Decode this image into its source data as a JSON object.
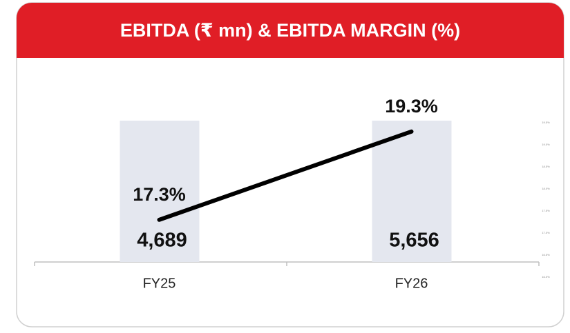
{
  "chart_data": {
    "type": "bar-line",
    "title": "EBITDA (₹ mn) & EBITDA MARGIN (%)",
    "categories": [
      "FY25",
      "FY26"
    ],
    "series": [
      {
        "name": "EBITDA (₹ mn)",
        "type": "bar",
        "color": "#e4e7ef",
        "values": [
          4689,
          5656
        ],
        "value_labels": [
          "4,689",
          "5,656"
        ]
      },
      {
        "name": "EBITDA MARGIN (%)",
        "type": "line",
        "axis": "y2",
        "color": "#000000",
        "values": [
          17.3,
          19.3
        ],
        "value_labels": [
          "17.3%",
          "19.3%"
        ]
      }
    ],
    "ylim": [
      0,
      4500
    ],
    "y2lim": [
      16.0,
      19.5
    ],
    "y2ticks": [
      {
        "value": 16.0,
        "label": "16.0%"
      },
      {
        "value": 16.5,
        "label": "16.5%"
      },
      {
        "value": 17.0,
        "label": "17.0%"
      },
      {
        "value": 17.5,
        "label": "17.5%"
      },
      {
        "value": 18.0,
        "label": "18.0%"
      },
      {
        "value": 18.5,
        "label": "18.5%"
      },
      {
        "value": 19.0,
        "label": "19.0%"
      },
      {
        "value": 19.5,
        "label": "19.5%"
      }
    ]
  }
}
